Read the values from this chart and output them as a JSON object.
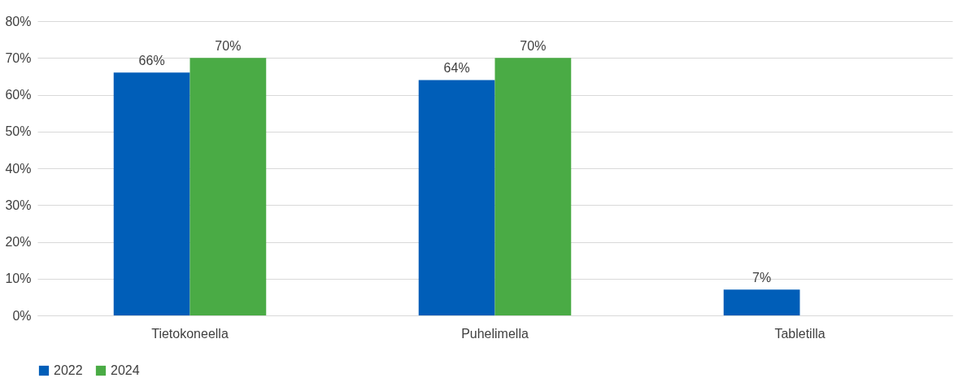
{
  "chart_data": {
    "type": "bar",
    "categories": [
      "Tietokoneella",
      "Puhelimella",
      "Tabletilla"
    ],
    "series": [
      {
        "name": "2022",
        "color": "#005eb8",
        "values": [
          66,
          64,
          7
        ],
        "value_labels": [
          "66%",
          "64%",
          "7%"
        ]
      },
      {
        "name": "2024",
        "color": "#4aab45",
        "values": [
          70,
          70,
          null
        ],
        "value_labels": [
          "70%",
          "70%",
          null
        ]
      }
    ],
    "ylim": [
      0,
      80
    ],
    "yticks": [
      {
        "value": 0,
        "label": "0%"
      },
      {
        "value": 10,
        "label": "10%"
      },
      {
        "value": 20,
        "label": "20%"
      },
      {
        "value": 30,
        "label": "30%"
      },
      {
        "value": 40,
        "label": "40%"
      },
      {
        "value": 50,
        "label": "50%"
      },
      {
        "value": 60,
        "label": "60%"
      },
      {
        "value": 70,
        "label": "70%"
      },
      {
        "value": 80,
        "label": "80%"
      }
    ],
    "grid": "y",
    "legend": "bottom"
  }
}
